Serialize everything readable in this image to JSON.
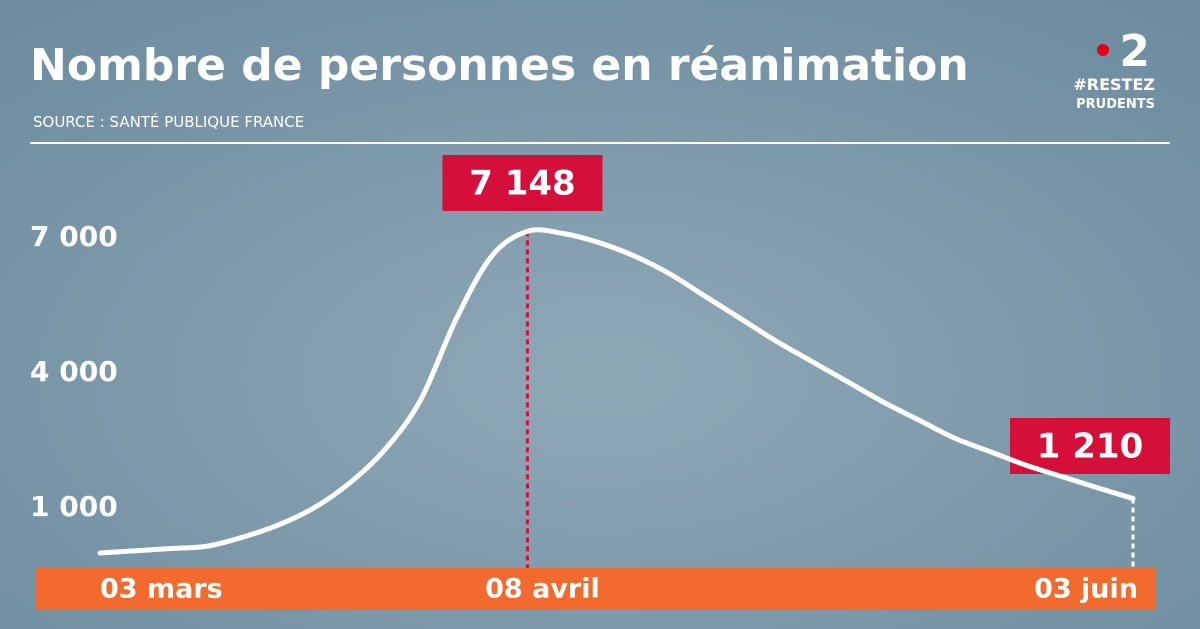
{
  "chart_data": {
    "type": "line",
    "title": "Nombre de personnes en réanimation",
    "subtitle": "SOURCE : SANTÉ PUBLIQUE FRANCE",
    "categories": [
      "03 mars",
      null,
      null,
      null,
      null,
      null,
      null,
      null,
      null,
      null,
      null,
      null,
      "08 avril",
      null,
      null,
      null,
      null,
      null,
      null,
      null,
      null,
      null,
      null,
      null,
      null,
      null,
      null,
      null,
      null,
      "03 juin"
    ],
    "values": [
      0,
      50,
      100,
      150,
      350,
      620,
      1000,
      1550,
      2300,
      3400,
      5200,
      6600,
      7148,
      7100,
      6900,
      6600,
      6200,
      5700,
      5200,
      4700,
      4250,
      3800,
      3350,
      2950,
      2550,
      2250,
      1950,
      1700,
      1450,
      1210
    ],
    "value_labels": [
      null,
      null,
      null,
      null,
      null,
      null,
      null,
      null,
      null,
      null,
      null,
      null,
      "7 148",
      null,
      null,
      null,
      null,
      null,
      null,
      null,
      null,
      null,
      null,
      null,
      null,
      null,
      null,
      null,
      null,
      "1 210"
    ],
    "color": "#ffffff",
    "label_color": "#d4103a",
    "axis_bar_color": "#f26a2e",
    "ylim": [
      0,
      8000
    ],
    "yticks": [
      {
        "value": 1000,
        "label": "1 000"
      },
      {
        "value": 4000,
        "label": "4 000"
      },
      {
        "value": 7000,
        "label": "7 000"
      }
    ]
  },
  "logo": {
    "channel": "2",
    "line1": "#RESTEZ",
    "line2": "PRUDENTS"
  }
}
